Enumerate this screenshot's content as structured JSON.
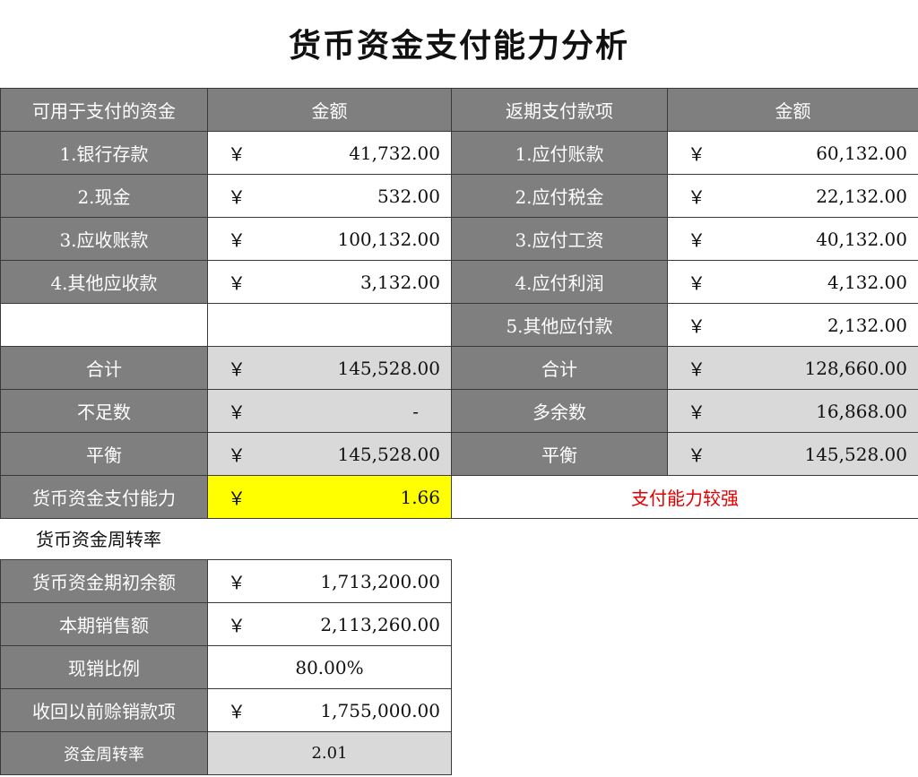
{
  "title": "货币资金支付能力分析",
  "currency": "￥",
  "header": {
    "assets": "可用于支付的资金",
    "amount1": "金额",
    "payables": "返期支付款项",
    "amount2": "金额"
  },
  "rows": [
    {
      "l": "1.银行存款",
      "lv": "41,732.00",
      "r": "1.应付账款",
      "rv": "60,132.00"
    },
    {
      "l": "2.现金",
      "lv": "532.00",
      "r": "2.应付税金",
      "rv": "22,132.00"
    },
    {
      "l": "3.应收账款",
      "lv": "100,132.00",
      "r": "3.应付工资",
      "rv": "40,132.00"
    },
    {
      "l": "4.其他应收款",
      "lv": "3,132.00",
      "r": "4.应付利润",
      "rv": "4,132.00"
    },
    {
      "l": "",
      "lv": "",
      "r": "5.其他应付款",
      "rv": "2,132.00"
    }
  ],
  "totals": [
    {
      "l": "合计",
      "lv": "145,528.00",
      "r": "合计",
      "rv": "128,660.00"
    },
    {
      "l": "不足数",
      "lv": "-",
      "r": "多余数",
      "rv": "16,868.00"
    },
    {
      "l": "平衡",
      "lv": "145,528.00",
      "r": "平衡",
      "rv": "145,528.00"
    }
  ],
  "capacity": {
    "label": "货币资金支付能力",
    "value": "1.66",
    "verdict": "支付能力较强",
    "verdict_color": "#e60000",
    "highlight_color": "#ffff00"
  },
  "turnover": {
    "section_label": "货币资金周转率",
    "opening_label": "货币资金期初余额",
    "opening_value": "1,713,200.00",
    "sales_label": "本期销售额",
    "sales_value": "2,113,260.00",
    "cash_ratio_label": "现销比例",
    "cash_ratio_value": "80.00%",
    "recovered_label": "收回以前赊销款项",
    "recovered_value": "1,755,000.00",
    "rate_label": "资金周转率",
    "rate_value": "2.01"
  }
}
